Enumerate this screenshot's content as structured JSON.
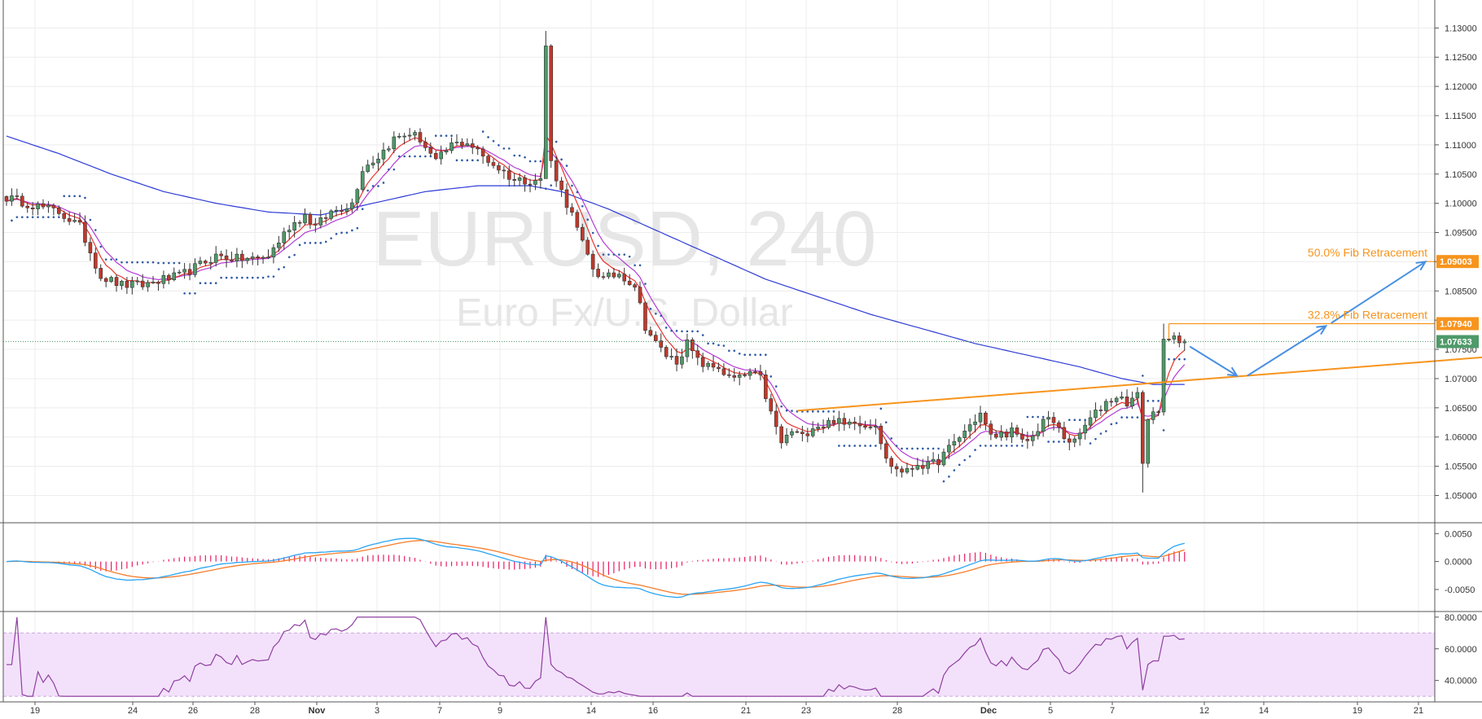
{
  "watermark": {
    "symbol": "EURUSD, 240",
    "description": "Euro Fx/U.S. Dollar"
  },
  "colors": {
    "up": "#4e9a69",
    "down": "#c0392b",
    "ema_fast": "#e8342f",
    "ema_mid": "#b43cd6",
    "ma_slow": "#2e3bd6",
    "sar": "#2f5aa5",
    "trend": "#f7941d",
    "arrows": "#4a90e2",
    "macd_line": "#2aa4f4",
    "macd_signal": "#f57c2a",
    "macd_hist": "#e91e63",
    "rsi": "#8e3fa0",
    "rsi_band": "#f3e1fb",
    "grid": "#ececec",
    "badge_price": "#4e9a69"
  },
  "price_axis": {
    "ticks": [
      "1.13000",
      "1.12500",
      "1.12000",
      "1.11500",
      "1.11000",
      "1.10500",
      "1.10000",
      "1.09500",
      "1.09000",
      "1.08500",
      "1.08000",
      "1.07500",
      "1.07000",
      "1.06500",
      "1.06000",
      "1.05500",
      "1.05000"
    ],
    "current_price": "1.07633",
    "badges": [
      {
        "label": "1.09003",
        "value": 1.09003,
        "color": "#f7941d"
      },
      {
        "label": "1.07940",
        "value": 1.0794,
        "color": "#f7941d"
      },
      {
        "label": "1.07633",
        "value": 1.07633,
        "color": "#4e9a69"
      }
    ]
  },
  "macd_axis": {
    "ticks": [
      "0.0050",
      "0.0000",
      "-0.0050"
    ]
  },
  "rsi_axis": {
    "ticks": [
      "80.0000",
      "60.0000",
      "40.0000"
    ]
  },
  "time_axis": {
    "labels": [
      "19",
      "24",
      "26",
      "28",
      "Nov",
      "3",
      "7",
      "9",
      "14",
      "16",
      "21",
      "23",
      "28",
      "Dec",
      "5",
      "7",
      "12",
      "14",
      "19",
      "21"
    ],
    "bold": [
      "Nov",
      "Dec"
    ]
  },
  "annotations": {
    "fib_50": {
      "label": "50.0% Fib Retracement",
      "price": 1.09003
    },
    "fib_328": {
      "label": "32.8% Fib Retracement",
      "price": 1.0794
    }
  },
  "chart_data": {
    "type": "candlestick",
    "symbol": "EURUSD",
    "timeframe": "240",
    "ylim": [
      1.047,
      1.132
    ],
    "anchors": [
      [
        0,
        1.101
      ],
      [
        6,
        1.0995
      ],
      [
        10,
        1.0985
      ],
      [
        14,
        1.096
      ],
      [
        18,
        1.0875
      ],
      [
        22,
        1.086
      ],
      [
        26,
        1.086
      ],
      [
        30,
        1.087
      ],
      [
        33,
        1.0875
      ],
      [
        36,
        1.089
      ],
      [
        40,
        1.091
      ],
      [
        44,
        1.0905
      ],
      [
        48,
        1.0905
      ],
      [
        50,
        1.091
      ],
      [
        54,
        1.096
      ],
      [
        57,
        1.098
      ],
      [
        59,
        1.096
      ],
      [
        62,
        1.0985
      ],
      [
        66,
        1.1
      ],
      [
        68,
        1.106
      ],
      [
        71,
        1.108
      ],
      [
        74,
        1.111
      ],
      [
        77,
        1.112
      ],
      [
        79,
        1.111
      ],
      [
        82,
        1.107
      ],
      [
        85,
        1.11
      ],
      [
        88,
        1.1105
      ],
      [
        91,
        1.108
      ],
      [
        94,
        1.106
      ],
      [
        97,
        1.104
      ],
      [
        100,
        1.104
      ],
      [
        102,
        1.104
      ],
      [
        103,
        1.127
      ],
      [
        104,
        1.107
      ],
      [
        106,
        1.102
      ],
      [
        108,
        1.098
      ],
      [
        110,
        1.093
      ],
      [
        112,
        1.089
      ],
      [
        114,
        1.087
      ],
      [
        117,
        1.088
      ],
      [
        120,
        1.086
      ],
      [
        122,
        1.079
      ],
      [
        124,
        1.076
      ],
      [
        126,
        1.074
      ],
      [
        128,
        1.073
      ],
      [
        130,
        1.076
      ],
      [
        132,
        1.073
      ],
      [
        134,
        1.072
      ],
      [
        136,
        1.072
      ],
      [
        138,
        1.07
      ],
      [
        140,
        1.07
      ],
      [
        142,
        1.071
      ],
      [
        144,
        1.07
      ],
      [
        146,
        1.064
      ],
      [
        148,
        1.059
      ],
      [
        150,
        1.061
      ],
      [
        152,
        1.06
      ],
      [
        154,
        1.062
      ],
      [
        156,
        1.062
      ],
      [
        158,
        1.063
      ],
      [
        160,
        1.062
      ],
      [
        162,
        1.063
      ],
      [
        164,
        1.062
      ],
      [
        166,
        1.0625
      ],
      [
        168,
        1.056
      ],
      [
        170,
        1.0545
      ],
      [
        172,
        1.054
      ],
      [
        174,
        1.0555
      ],
      [
        176,
        1.055
      ],
      [
        178,
        1.056
      ],
      [
        180,
        1.058
      ],
      [
        182,
        1.06
      ],
      [
        184,
        1.062
      ],
      [
        186,
        1.064
      ],
      [
        188,
        1.06
      ],
      [
        190,
        1.0605
      ],
      [
        192,
        1.061
      ],
      [
        194,
        1.059
      ],
      [
        196,
        1.06
      ],
      [
        198,
        1.063
      ],
      [
        200,
        1.0625
      ],
      [
        202,
        1.06
      ],
      [
        204,
        1.059
      ],
      [
        206,
        1.062
      ],
      [
        208,
        1.064
      ],
      [
        210,
        1.066
      ],
      [
        212,
        1.067
      ],
      [
        214,
        1.066
      ],
      [
        216,
        1.067
      ],
      [
        217,
        1.056
      ],
      [
        218,
        1.063
      ],
      [
        220,
        1.065
      ],
      [
        221,
        1.076
      ],
      [
        223,
        1.0768
      ],
      [
        225,
        1.0764
      ]
    ],
    "spikes": [
      {
        "candle": 103,
        "high": 1.1295,
        "low": 1.105
      },
      {
        "candle": 217,
        "low": 1.0505
      },
      {
        "candle": 221,
        "high": 1.0794
      }
    ],
    "ma_slow_points": [
      [
        0,
        1.1115
      ],
      [
        10,
        1.1085
      ],
      [
        20,
        1.105
      ],
      [
        30,
        1.102
      ],
      [
        40,
        1.1
      ],
      [
        50,
        1.0985
      ],
      [
        60,
        1.098
      ],
      [
        70,
        1.1
      ],
      [
        80,
        1.102
      ],
      [
        90,
        1.103
      ],
      [
        100,
        1.103
      ],
      [
        106,
        1.102
      ],
      [
        115,
        1.099
      ],
      [
        125,
        1.095
      ],
      [
        135,
        1.091
      ],
      [
        145,
        1.087
      ],
      [
        155,
        1.084
      ],
      [
        165,
        1.081
      ],
      [
        175,
        1.0785
      ],
      [
        185,
        1.076
      ],
      [
        195,
        1.074
      ],
      [
        205,
        1.072
      ],
      [
        213,
        1.07
      ],
      [
        219,
        1.069
      ],
      [
        225,
        1.069
      ]
    ],
    "trendline": {
      "from": [
        151,
        1.0645
      ],
      "to": [
        290,
        1.0742
      ]
    },
    "macd": {
      "ylim": [
        -0.0085,
        0.0065
      ]
    },
    "rsi": {
      "ylim": [
        28,
        82
      ],
      "band": [
        30,
        70
      ]
    },
    "trade_plan_arrows": [
      [
        [
          226,
          1.0755
        ],
        [
          235,
          1.0705
        ]
      ],
      [
        [
          237,
          1.0705
        ],
        [
          252,
          1.079
        ]
      ],
      [
        [
          253,
          1.0795
        ],
        [
          271,
          1.09
        ]
      ]
    ]
  }
}
